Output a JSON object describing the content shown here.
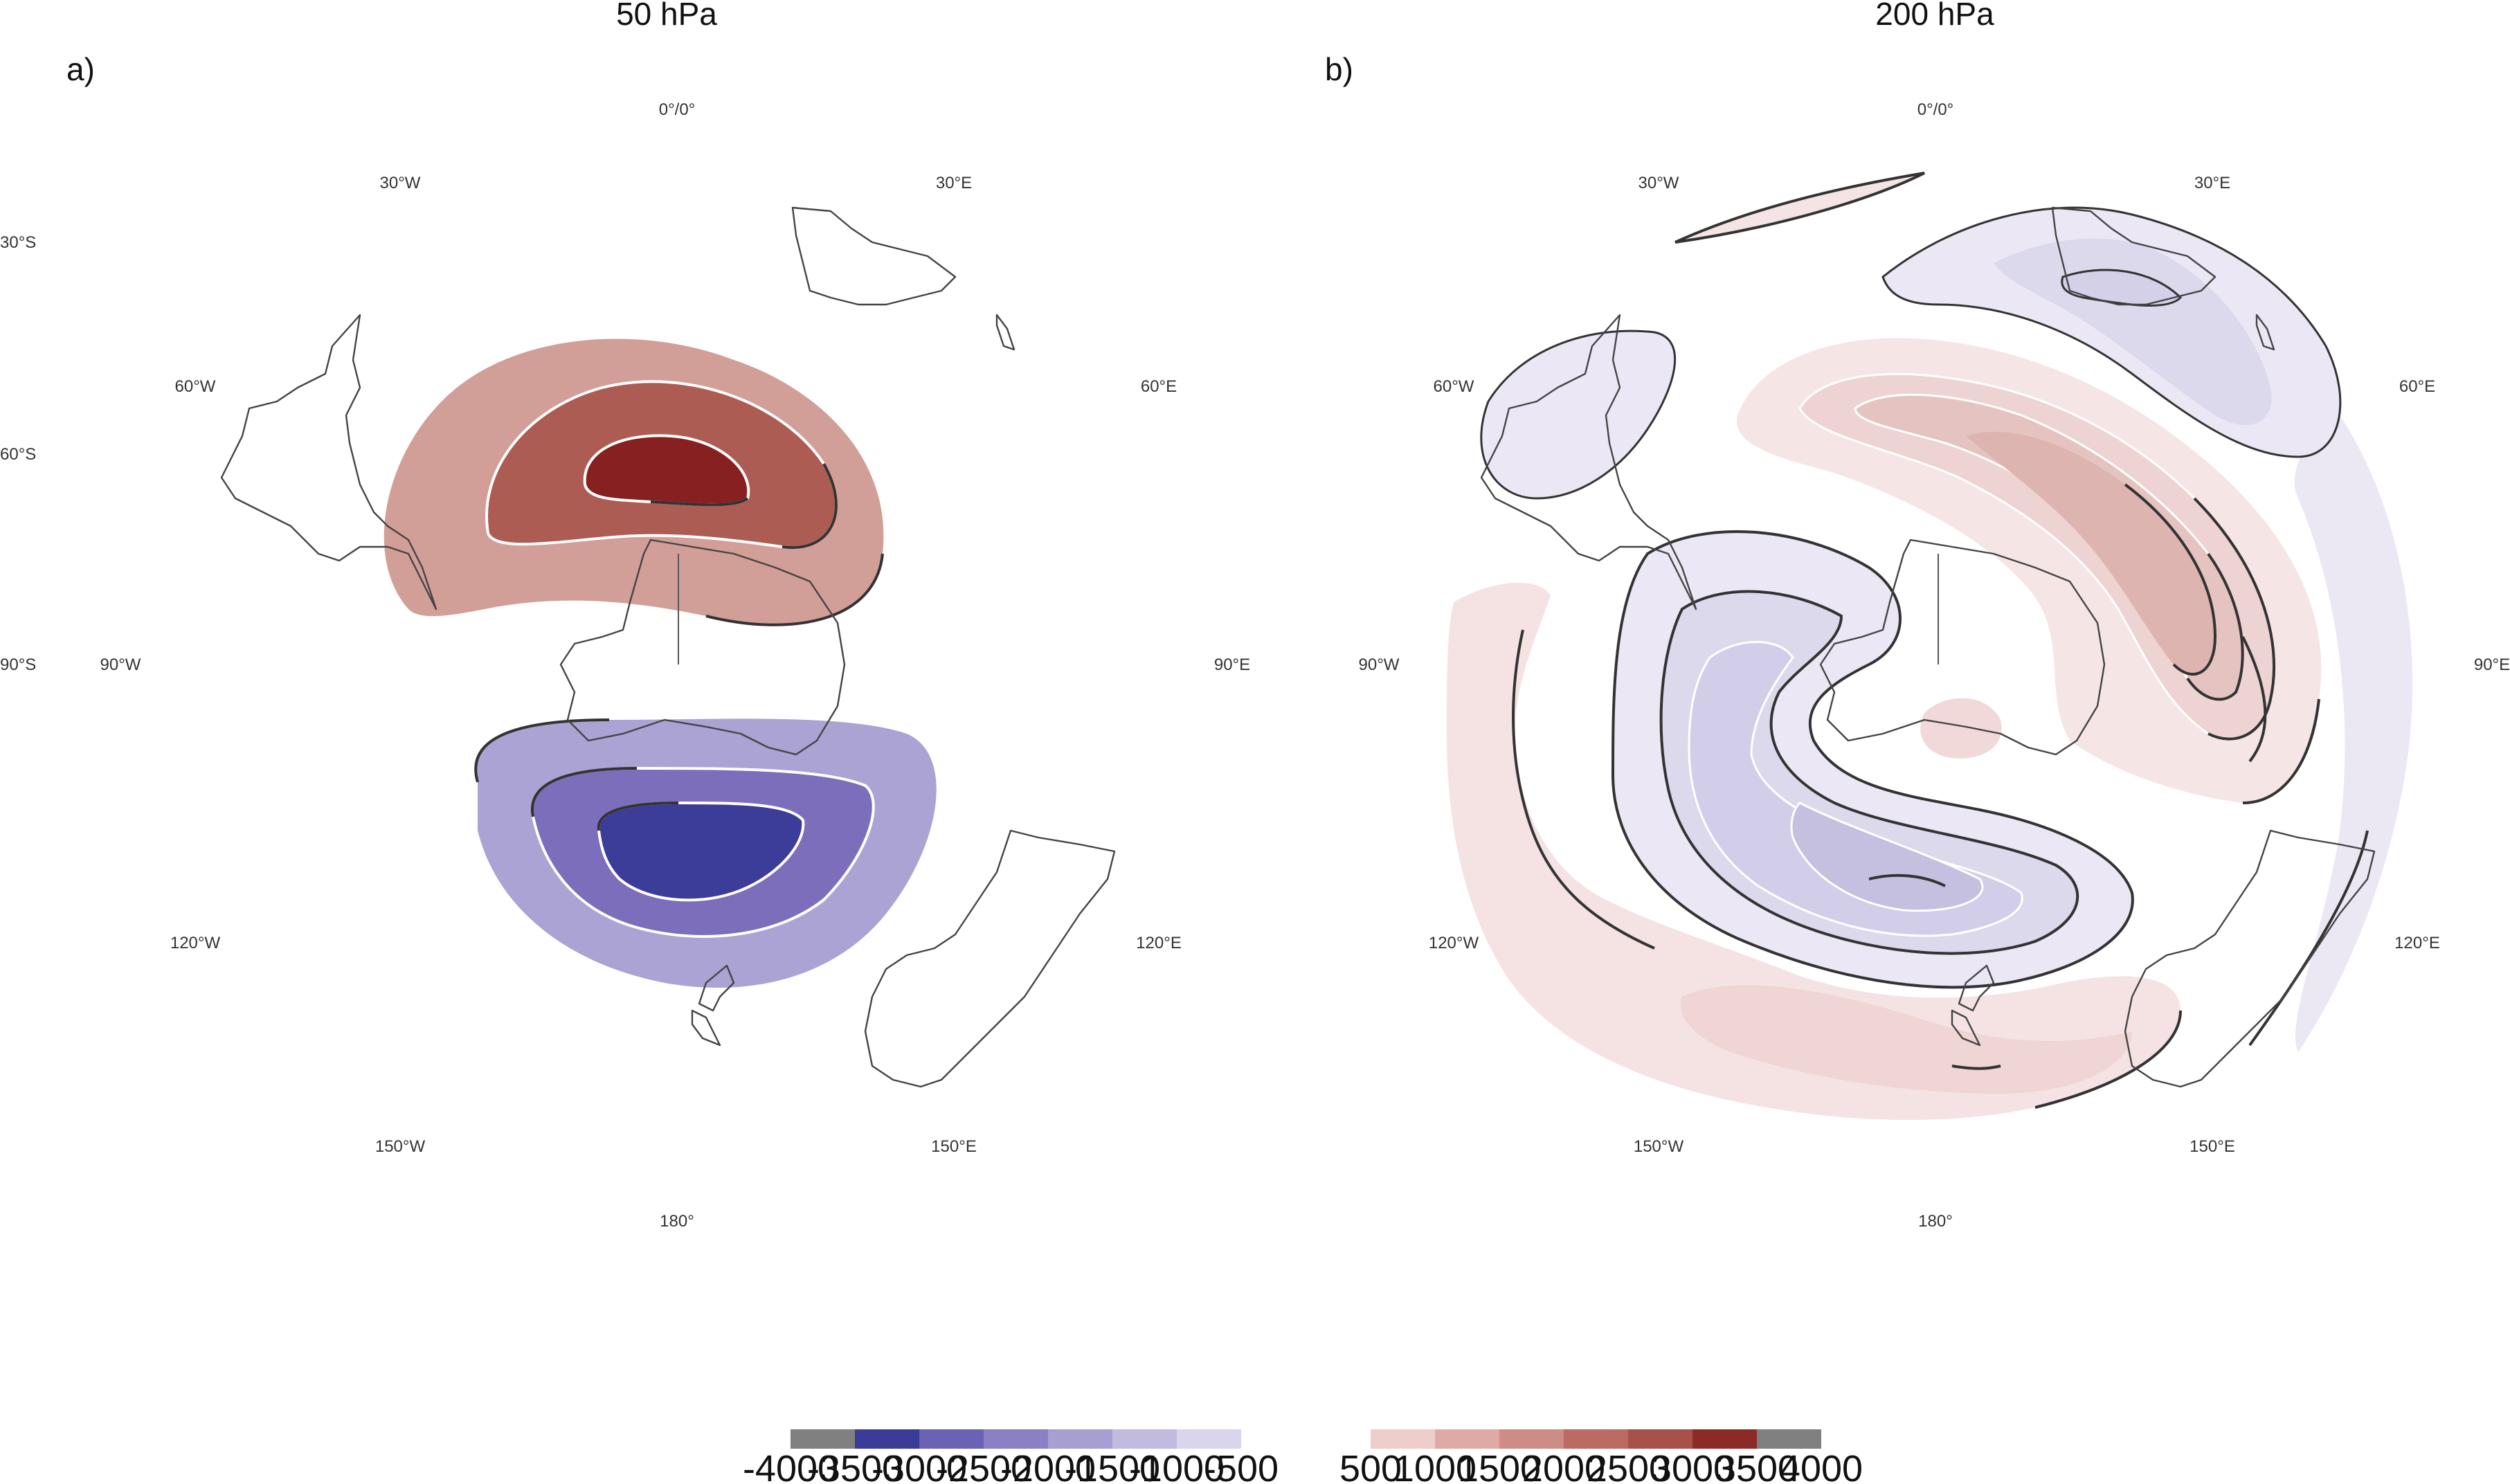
{
  "panels": [
    {
      "letter": "a)",
      "title": "50 hPa",
      "labels": {
        "lon_0": "0°/0°",
        "lon_30w": "30°W",
        "lon_30e": "30°E",
        "lon_60w": "60°W",
        "lon_60e": "60°E",
        "lon_90w": "90°W",
        "lon_90e": "90°E",
        "lon_120w": "120°W",
        "lon_120e": "120°E",
        "lon_150w": "150°W",
        "lon_150e": "150°E",
        "lon_180": "180°",
        "lat_30s": "30°S",
        "lat_60s": "60°S",
        "lat_90s": "90°S"
      }
    },
    {
      "letter": "b)",
      "title": "200 hPa",
      "labels": {
        "lon_0": "0°/0°",
        "lon_30w": "30°W",
        "lon_30e": "30°E",
        "lon_60w": "60°W",
        "lon_60e": "60°E",
        "lon_90w": "90°W",
        "lon_90e": "90°E",
        "lon_120w": "120°W",
        "lon_120e": "120°E",
        "lon_150w": "150°W",
        "lon_150e": "150°E",
        "lon_180": "180°"
      }
    }
  ],
  "colorbar_negative": {
    "colors": [
      "#808080",
      "#3b3b99",
      "#6b62b4",
      "#8a80c3",
      "#a79fd1",
      "#c2bbdf",
      "#dad5ec"
    ],
    "ticks": [
      "-4000",
      "-3500",
      "-3000",
      "-2500",
      "-2000",
      "-1500",
      "-1000",
      "-500"
    ]
  },
  "colorbar_positive": {
    "colors": [
      "#efcdcb",
      "#dfaaa6",
      "#cd8c86",
      "#bb6a64",
      "#a8504a",
      "#8c2a26",
      "#808080"
    ],
    "ticks": [
      "500",
      "1000",
      "1500",
      "2000",
      "2500",
      "3000",
      "3500",
      "4000"
    ]
  }
}
